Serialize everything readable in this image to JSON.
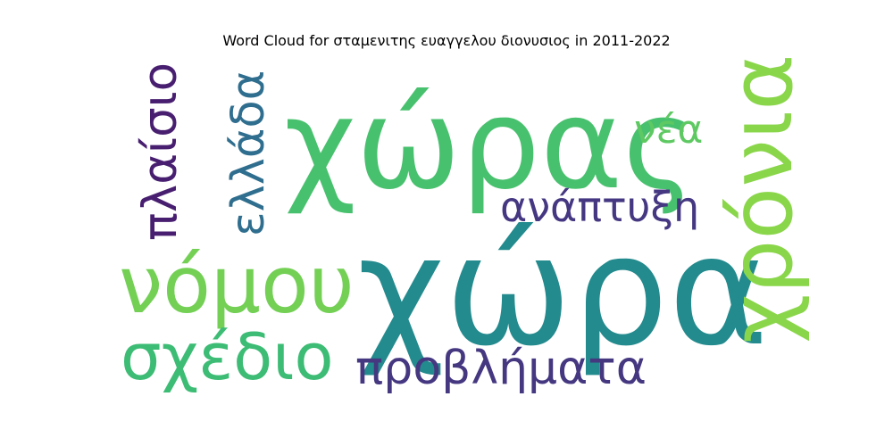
{
  "chart_data": {
    "type": "wordcloud",
    "title": "Word Cloud for σταμενιτης ευαγγελου διονυσιος in 2011-2022",
    "words": [
      {
        "text": "χώρα",
        "color": "#238a8d"
      },
      {
        "text": "χώρας",
        "color": "#48c16e"
      },
      {
        "text": "χρόνια",
        "color": "#8ad64a"
      },
      {
        "text": "νόμου",
        "color": "#73d055"
      },
      {
        "text": "σχέδιο",
        "color": "#3cbc74"
      },
      {
        "text": "προβλήματα",
        "color": "#453780"
      },
      {
        "text": "ανάπτυξη",
        "color": "#453781"
      },
      {
        "text": "πλαίσιο",
        "color": "#481f70"
      },
      {
        "text": "ελλάδα",
        "color": "#2f6e8e"
      },
      {
        "text": "νέα",
        "color": "#5ec962"
      }
    ]
  }
}
